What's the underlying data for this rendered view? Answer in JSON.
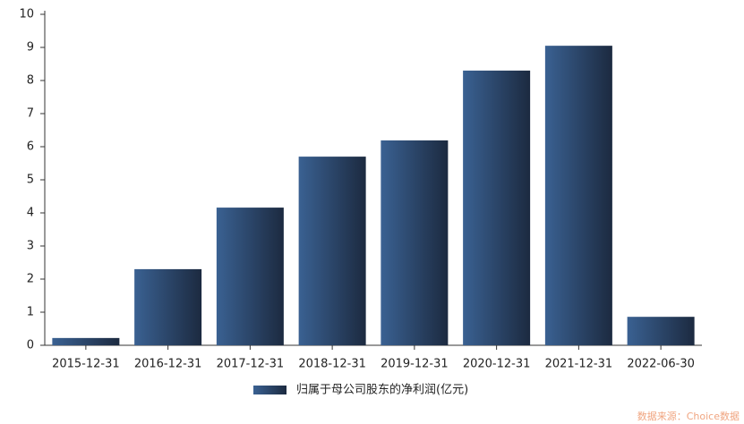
{
  "chart_data": {
    "type": "bar",
    "categories": [
      "2015-12-31",
      "2016-12-31",
      "2017-12-31",
      "2018-12-31",
      "2019-12-31",
      "2020-12-31",
      "2021-12-31",
      "2022-06-30"
    ],
    "series": [
      {
        "name": "归属于母公司股东的净利润(亿元)",
        "color": "#3a6192",
        "values": [
          0.22,
          2.3,
          4.16,
          5.7,
          6.19,
          8.3,
          9.05,
          0.86
        ]
      }
    ],
    "ylim": [
      0,
      10
    ],
    "yticks": [
      0,
      1,
      2,
      3,
      4,
      5,
      6,
      7,
      8,
      9,
      10
    ],
    "grid": false,
    "legend": "bottom",
    "source": "数据来源：Choice数据"
  }
}
